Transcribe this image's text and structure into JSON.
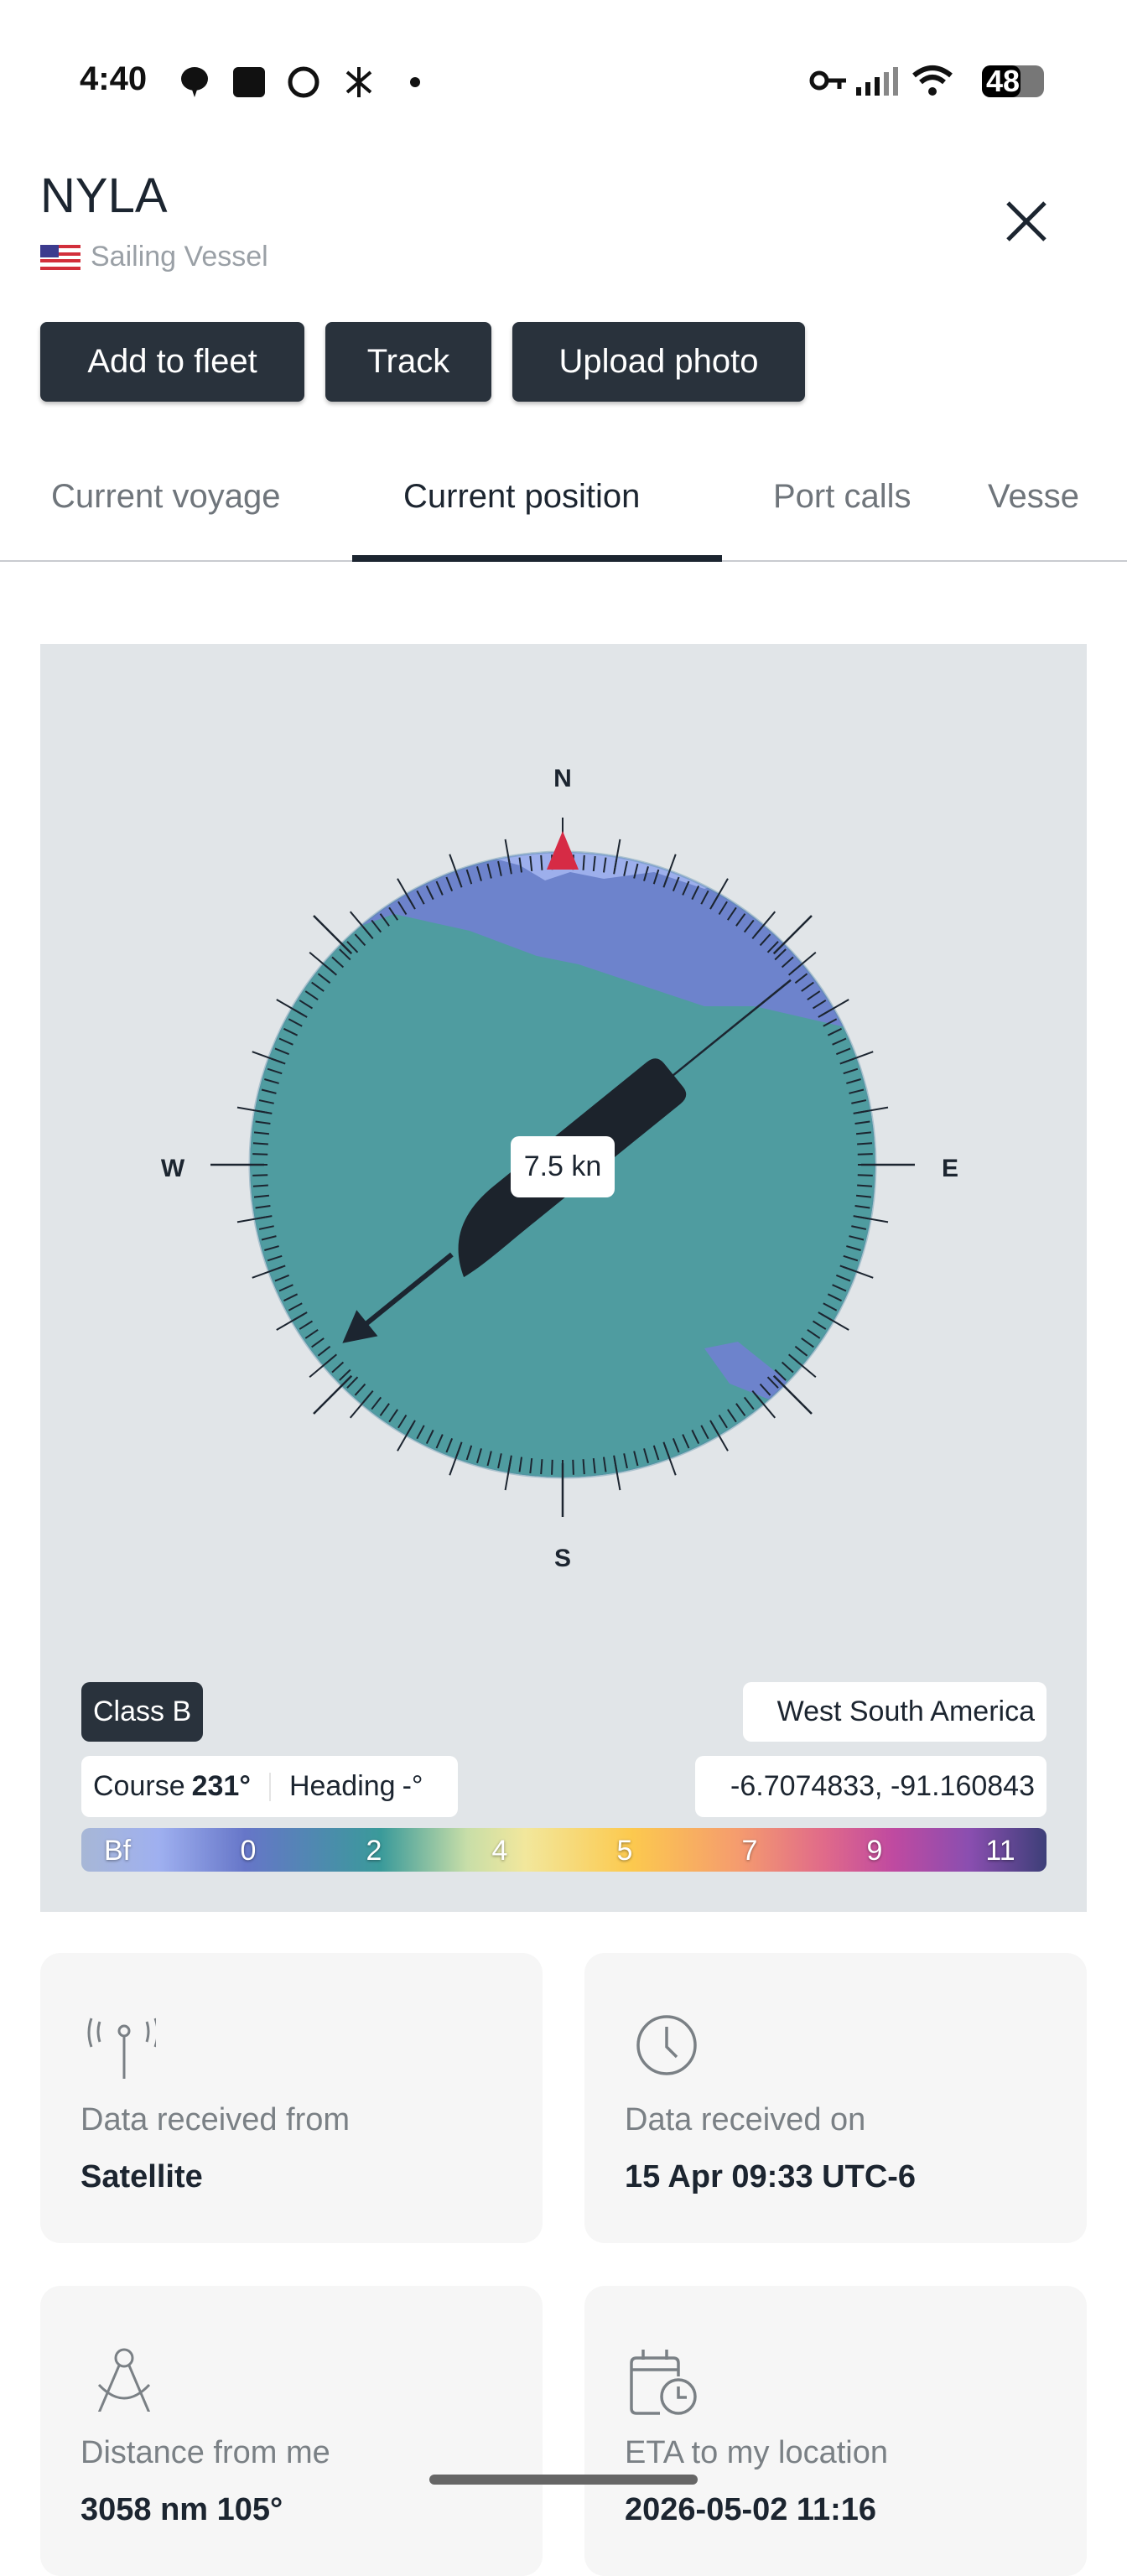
{
  "status_bar": {
    "time": "4:40",
    "battery": "48"
  },
  "vessel": {
    "name": "NYLA",
    "type": "Sailing Vessel",
    "flag": "us-flag-icon"
  },
  "actions": {
    "add_to_fleet": "Add to fleet",
    "track": "Track",
    "upload_photo": "Upload photo"
  },
  "tabs": [
    {
      "label": "Current voyage",
      "active": false
    },
    {
      "label": "Current position",
      "active": true
    },
    {
      "label": "Port calls",
      "active": false
    },
    {
      "label": "Vesse",
      "active": false
    }
  ],
  "compass": {
    "north": "N",
    "east": "E",
    "south": "S",
    "west": "W",
    "speed": "7.5 kn",
    "course_deg": 231,
    "colors": {
      "wind_low": "#6d83cc",
      "wind_mid": "#4f9ca0",
      "north_marker": "#d62b45"
    }
  },
  "position": {
    "ais_class": "Class B",
    "region": "West South America",
    "course_label": "Course",
    "course_value": "231°",
    "heading_label": "Heading",
    "heading_value": "-°",
    "coordinates": "-6.7074833, -91.160843"
  },
  "beaufort_scale": {
    "labels": [
      "Bf",
      "0",
      "2",
      "4",
      "5",
      "7",
      "9",
      "11"
    ]
  },
  "cards": [
    {
      "icon": "antenna-icon",
      "label": "Data received from",
      "value": "Satellite"
    },
    {
      "icon": "clock-icon",
      "label": "Data received on",
      "value": "15 Apr 09:33 UTC-6"
    },
    {
      "icon": "compass-drafting-icon",
      "label": "Distance from me",
      "value": "3058 nm 105°"
    },
    {
      "icon": "calendar-clock-icon",
      "label": "ETA to my location",
      "value": "2026-05-02 11:16"
    }
  ]
}
